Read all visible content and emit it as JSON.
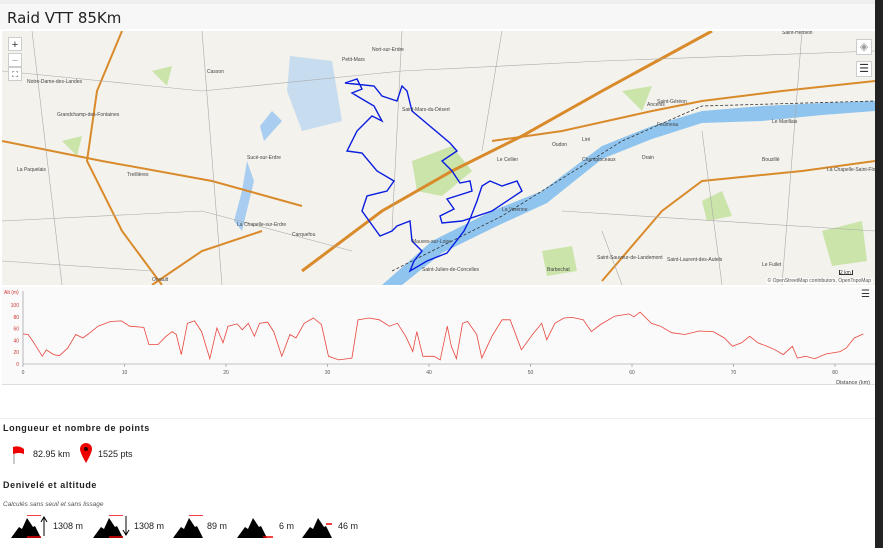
{
  "title": "Raid VTT 85Km",
  "map": {
    "zoom_in": "+",
    "zoom_out": "−",
    "attribution": "© OpenStreetMap contributors, OpenTopoMap",
    "scale": "2 km",
    "places": [
      "Notre-Dame-des-Landes",
      "Grandchamp-des-Fontaines",
      "Sucé-sur-Erdre",
      "La Chapelle-sur-Erdre",
      "Carquefou",
      "Orvault",
      "Petit-Mars",
      "Saint-Mars-du-Désert",
      "Mauves-sur-Loire",
      "Le Cellier",
      "Oudon",
      "Ancenis",
      "Saint-Géréon",
      "Saint-Herblon",
      "Liré",
      "Le Fuilet",
      "Saint-Laurent-des-Autels",
      "Le Marillais",
      "Bouzillé",
      "La Chapelle-Saint-Florent",
      "La Varenne",
      "Champtoceaux",
      "Barbechat",
      "Saint-Sauveur-de-Landemont",
      "Nort-sur-Erdre",
      "Treillières",
      "Casson",
      "La Paquelais",
      "Fourneau",
      "Drain",
      "Saint-Julien-de-Concelles"
    ],
    "colors": {
      "route": "#0a1ee0",
      "river": "#8fc4ee",
      "road": "#d98a2b",
      "forest": "#b7dd8e"
    }
  },
  "elevation_chart": {
    "chart_data": {
      "type": "line",
      "ylabel": "Alt (m)",
      "xlabel": "Distance (km)",
      "xlim": [
        0,
        83
      ],
      "ylim": [
        0,
        126
      ],
      "x_ticks": [
        0,
        10,
        20,
        30,
        40,
        50,
        60,
        70,
        80
      ],
      "y_ticks": [
        0,
        20,
        40,
        60,
        80,
        100
      ],
      "color": "#e8453c",
      "points": [
        [
          0,
          51
        ],
        [
          0.5,
          50
        ],
        [
          1,
          38
        ],
        [
          1.9,
          13
        ],
        [
          2.3,
          24
        ],
        [
          3,
          16
        ],
        [
          3.6,
          14
        ],
        [
          4.4,
          27
        ],
        [
          5.2,
          50
        ],
        [
          5.9,
          44
        ],
        [
          6.6,
          53
        ],
        [
          7.4,
          64
        ],
        [
          8.6,
          72
        ],
        [
          9.7,
          73
        ],
        [
          10.5,
          64
        ],
        [
          11.9,
          62
        ],
        [
          12.4,
          33
        ],
        [
          13.3,
          33
        ],
        [
          14.1,
          47
        ],
        [
          14.7,
          55
        ],
        [
          15.1,
          50
        ],
        [
          15.6,
          16
        ],
        [
          16.2,
          69
        ],
        [
          16.9,
          73
        ],
        [
          17.6,
          55
        ],
        [
          18.4,
          9
        ],
        [
          19.1,
          61
        ],
        [
          19.7,
          36
        ],
        [
          20.2,
          64
        ],
        [
          21.1,
          68
        ],
        [
          21.6,
          58
        ],
        [
          22.2,
          69
        ],
        [
          22.8,
          47
        ],
        [
          23.3,
          69
        ],
        [
          24.1,
          71
        ],
        [
          24.7,
          55
        ],
        [
          25.5,
          13
        ],
        [
          26.3,
          50
        ],
        [
          26.9,
          44
        ],
        [
          27.7,
          69
        ],
        [
          28.6,
          78
        ],
        [
          29.4,
          67
        ],
        [
          30.1,
          13
        ],
        [
          31.1,
          7
        ],
        [
          32.4,
          10
        ],
        [
          33,
          75
        ],
        [
          34.1,
          78
        ],
        [
          35.1,
          75
        ],
        [
          36.1,
          64
        ],
        [
          36.9,
          69
        ],
        [
          37.7,
          47
        ],
        [
          38.4,
          21
        ],
        [
          38.8,
          55
        ],
        [
          39.4,
          13
        ],
        [
          40.5,
          13
        ],
        [
          41.1,
          7
        ],
        [
          41.8,
          64
        ],
        [
          42.2,
          30
        ],
        [
          42.7,
          9
        ],
        [
          43.3,
          69
        ],
        [
          43.8,
          72
        ],
        [
          44.7,
          50
        ],
        [
          45.2,
          10
        ],
        [
          46.2,
          47
        ],
        [
          47.2,
          75
        ],
        [
          48,
          75
        ],
        [
          49.1,
          24
        ],
        [
          50.2,
          50
        ],
        [
          51.1,
          69
        ],
        [
          51.6,
          41
        ],
        [
          52.4,
          69
        ],
        [
          53.3,
          78
        ],
        [
          54.1,
          79
        ],
        [
          55.2,
          75
        ],
        [
          56,
          55
        ],
        [
          56.9,
          67
        ],
        [
          58.3,
          81
        ],
        [
          59.7,
          85
        ],
        [
          60.2,
          80
        ],
        [
          60.8,
          88
        ],
        [
          61.9,
          69
        ],
        [
          62.8,
          64
        ],
        [
          63.9,
          53
        ],
        [
          65.2,
          50
        ],
        [
          66.6,
          56
        ],
        [
          68,
          55
        ],
        [
          69.1,
          44
        ],
        [
          69.9,
          30
        ],
        [
          70.8,
          36
        ],
        [
          71.6,
          47
        ],
        [
          72.4,
          36
        ],
        [
          73.3,
          30
        ],
        [
          74.1,
          24
        ],
        [
          74.9,
          16
        ],
        [
          75.8,
          30
        ],
        [
          76.3,
          10
        ],
        [
          77.1,
          13
        ],
        [
          78,
          9
        ],
        [
          79.1,
          17
        ],
        [
          80.5,
          21
        ],
        [
          81.1,
          27
        ],
        [
          81.9,
          44
        ],
        [
          82.8,
          51
        ]
      ]
    }
  },
  "length_section": {
    "heading": "Longueur et nombre de points",
    "distance": "82.95 km",
    "points": "1525 pts"
  },
  "elevation_section": {
    "heading": "Denivelé et altitude",
    "note": "Calculés sans seuil et sans lissage",
    "stats": [
      {
        "icon": "ascent-icon",
        "value": "1308 m"
      },
      {
        "icon": "descent-icon",
        "value": "1308 m"
      },
      {
        "icon": "max-altitude-icon",
        "value": "89 m"
      },
      {
        "icon": "min-altitude-icon",
        "value": "6 m"
      },
      {
        "icon": "mean-altitude-icon",
        "value": "46 m"
      }
    ]
  }
}
